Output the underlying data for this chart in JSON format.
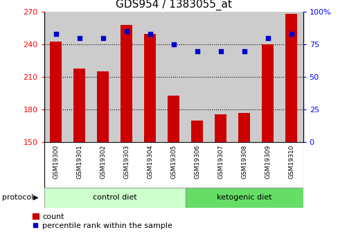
{
  "title": "GDS954 / 1383055_at",
  "samples": [
    "GSM19300",
    "GSM19301",
    "GSM19302",
    "GSM19303",
    "GSM19304",
    "GSM19305",
    "GSM19306",
    "GSM19307",
    "GSM19308",
    "GSM19309",
    "GSM19310"
  ],
  "red_values": [
    243,
    218,
    215,
    258,
    250,
    193,
    170,
    176,
    177,
    240,
    268
  ],
  "blue_values": [
    83,
    80,
    80,
    85,
    83,
    75,
    70,
    70,
    70,
    80,
    83
  ],
  "ylim_left": [
    150,
    270
  ],
  "ylim_right": [
    0,
    100
  ],
  "yticks_left": [
    150,
    180,
    210,
    240,
    270
  ],
  "yticks_right": [
    0,
    25,
    50,
    75,
    100
  ],
  "ytick_labels_right": [
    "0",
    "25",
    "50",
    "75",
    "100%"
  ],
  "bar_color": "#cc0000",
  "dot_color": "#0000cc",
  "control_label": "control diet",
  "ketogenic_label": "ketogenic diet",
  "protocol_label": "protocol",
  "legend_count": "count",
  "legend_percentile": "percentile rank within the sample",
  "title_fontsize": 11,
  "tick_fontsize": 8,
  "control_bg": "#ccffcc",
  "ketogenic_bg": "#66dd66",
  "sample_bg": "#cccccc",
  "n_control": 6,
  "n_keto": 5
}
